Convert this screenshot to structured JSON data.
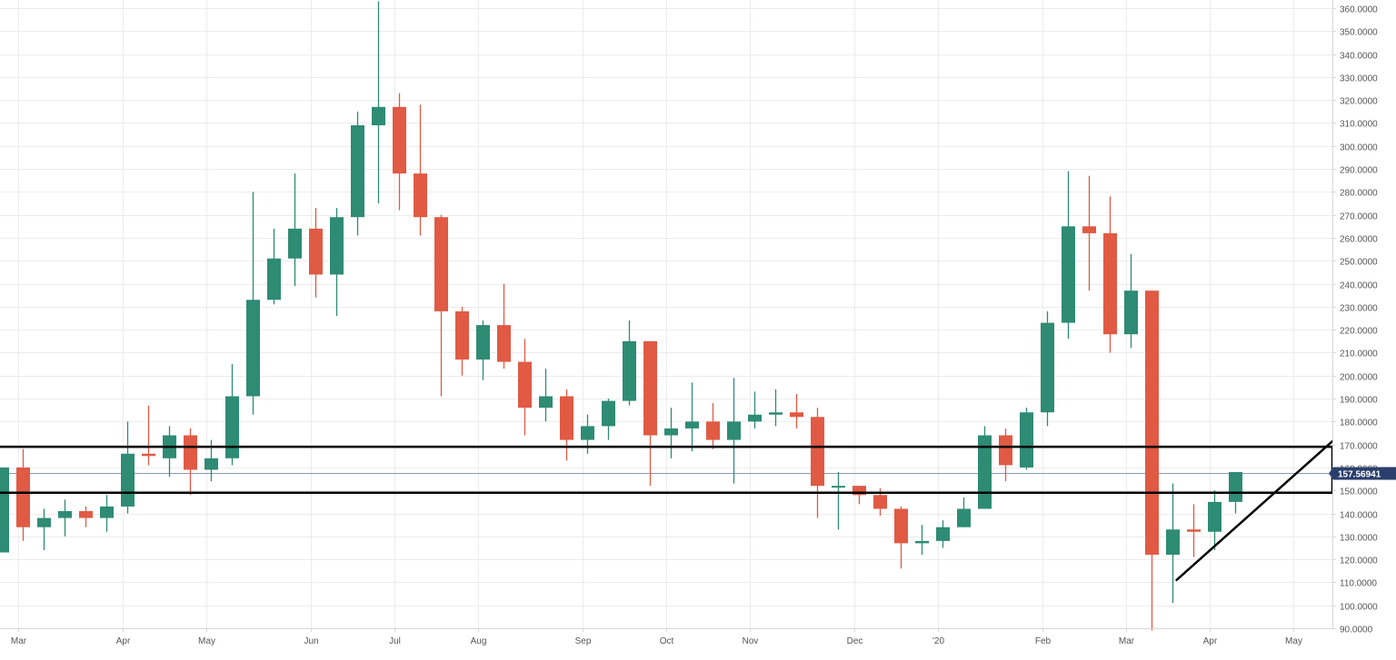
{
  "chart_data": {
    "type": "candlestick",
    "interval": "weekly",
    "colors": {
      "up": "#2e8b74",
      "down": "#e05a44",
      "grid": "#ececec",
      "axis": "#d6d6d6",
      "text": "#555555",
      "price_line": "#8a9bb5",
      "price_badge": "#2a3f6b",
      "annotations": "#000000"
    },
    "y_axis": {
      "min": 90,
      "max": 360,
      "step": 10,
      "position": "right",
      "ticks": [
        "360.0000",
        "350.0000",
        "340.0000",
        "330.0000",
        "320.0000",
        "310.0000",
        "300.0000",
        "290.0000",
        "280.0000",
        "270.0000",
        "260.0000",
        "250.0000",
        "240.0000",
        "230.0000",
        "220.0000",
        "210.0000",
        "200.0000",
        "190.0000",
        "180.0000",
        "170.0000",
        "160.0000",
        "150.0000",
        "140.0000",
        "130.0000",
        "120.0000",
        "110.0000",
        "100.0000",
        "90.0000"
      ]
    },
    "x_axis": {
      "labels": [
        {
          "label": "Mar",
          "at_candle": 0.8
        },
        {
          "label": "Apr",
          "at_candle": 5.8
        },
        {
          "label": "May",
          "at_candle": 9.8
        },
        {
          "label": "Jun",
          "at_candle": 14.8
        },
        {
          "label": "Jul",
          "at_candle": 18.8
        },
        {
          "label": "Aug",
          "at_candle": 22.8
        },
        {
          "label": "Sep",
          "at_candle": 27.8
        },
        {
          "label": "Oct",
          "at_candle": 31.8
        },
        {
          "label": "Nov",
          "at_candle": 35.8
        },
        {
          "label": "Dec",
          "at_candle": 40.8
        },
        {
          "label": "'20",
          "at_candle": 44.8
        },
        {
          "label": "Feb",
          "at_candle": 49.8
        },
        {
          "label": "Mar",
          "at_candle": 53.8
        },
        {
          "label": "Apr",
          "at_candle": 57.8
        },
        {
          "label": "May",
          "at_candle": 61.8
        }
      ]
    },
    "last_price": {
      "value": 157.56941,
      "label": "157.56941"
    },
    "candles": [
      {
        "o": 123,
        "h": 160,
        "l": 123,
        "c": 160
      },
      {
        "o": 160,
        "h": 168,
        "l": 128,
        "c": 134
      },
      {
        "o": 134,
        "h": 142,
        "l": 124,
        "c": 138
      },
      {
        "o": 138,
        "h": 146,
        "l": 130,
        "c": 141
      },
      {
        "o": 141,
        "h": 143,
        "l": 134,
        "c": 138
      },
      {
        "o": 138,
        "h": 148,
        "l": 132,
        "c": 143
      },
      {
        "o": 143,
        "h": 180,
        "l": 140,
        "c": 166
      },
      {
        "o": 166,
        "h": 187,
        "l": 161,
        "c": 165
      },
      {
        "o": 164,
        "h": 178,
        "l": 156,
        "c": 174
      },
      {
        "o": 174,
        "h": 177,
        "l": 148,
        "c": 159
      },
      {
        "o": 159,
        "h": 172,
        "l": 154,
        "c": 164
      },
      {
        "o": 164,
        "h": 205,
        "l": 161,
        "c": 191
      },
      {
        "o": 191,
        "h": 280,
        "l": 183,
        "c": 233
      },
      {
        "o": 233,
        "h": 264,
        "l": 231,
        "c": 251
      },
      {
        "o": 251,
        "h": 288,
        "l": 239,
        "c": 264
      },
      {
        "o": 264,
        "h": 273,
        "l": 234,
        "c": 244
      },
      {
        "o": 244,
        "h": 273,
        "l": 226,
        "c": 269
      },
      {
        "o": 269,
        "h": 315,
        "l": 261,
        "c": 309
      },
      {
        "o": 309,
        "h": 363,
        "l": 275,
        "c": 317
      },
      {
        "o": 317,
        "h": 323,
        "l": 272,
        "c": 288
      },
      {
        "o": 288,
        "h": 318,
        "l": 261,
        "c": 269
      },
      {
        "o": 269,
        "h": 270,
        "l": 191,
        "c": 228
      },
      {
        "o": 228,
        "h": 230,
        "l": 200,
        "c": 207
      },
      {
        "o": 207,
        "h": 224,
        "l": 198,
        "c": 222
      },
      {
        "o": 222,
        "h": 240,
        "l": 203,
        "c": 206
      },
      {
        "o": 206,
        "h": 216,
        "l": 174,
        "c": 186
      },
      {
        "o": 186,
        "h": 203,
        "l": 180,
        "c": 191
      },
      {
        "o": 191,
        "h": 194,
        "l": 163,
        "c": 172
      },
      {
        "o": 172,
        "h": 183,
        "l": 166,
        "c": 178
      },
      {
        "o": 178,
        "h": 190,
        "l": 172,
        "c": 189
      },
      {
        "o": 189,
        "h": 224,
        "l": 187,
        "c": 215
      },
      {
        "o": 215,
        "h": 215,
        "l": 152,
        "c": 174
      },
      {
        "o": 174,
        "h": 186,
        "l": 164,
        "c": 177
      },
      {
        "o": 177,
        "h": 197,
        "l": 167,
        "c": 180
      },
      {
        "o": 180,
        "h": 188,
        "l": 168,
        "c": 172
      },
      {
        "o": 172,
        "h": 199,
        "l": 153,
        "c": 180
      },
      {
        "o": 180,
        "h": 193,
        "l": 177,
        "c": 183
      },
      {
        "o": 183,
        "h": 194,
        "l": 178,
        "c": 184
      },
      {
        "o": 184,
        "h": 192,
        "l": 177,
        "c": 182
      },
      {
        "o": 182,
        "h": 186,
        "l": 138,
        "c": 152
      },
      {
        "o": 152,
        "h": 158,
        "l": 133,
        "c": 152
      },
      {
        "o": 152,
        "h": 152,
        "l": 144,
        "c": 148
      },
      {
        "o": 148,
        "h": 151,
        "l": 139,
        "c": 142
      },
      {
        "o": 142,
        "h": 143,
        "l": 116,
        "c": 127
      },
      {
        "o": 127,
        "h": 135,
        "l": 122,
        "c": 128
      },
      {
        "o": 128,
        "h": 137,
        "l": 125,
        "c": 134
      },
      {
        "o": 134,
        "h": 147,
        "l": 134,
        "c": 142
      },
      {
        "o": 142,
        "h": 178,
        "l": 142,
        "c": 174
      },
      {
        "o": 174,
        "h": 177,
        "l": 154,
        "c": 161
      },
      {
        "o": 160,
        "h": 186,
        "l": 159,
        "c": 184
      },
      {
        "o": 184,
        "h": 228,
        "l": 178,
        "c": 223
      },
      {
        "o": 223,
        "h": 289,
        "l": 216,
        "c": 265
      },
      {
        "o": 265,
        "h": 287,
        "l": 237,
        "c": 262
      },
      {
        "o": 262,
        "h": 278,
        "l": 210,
        "c": 218
      },
      {
        "o": 218,
        "h": 253,
        "l": 212,
        "c": 237
      },
      {
        "o": 237,
        "h": 237,
        "l": 89,
        "c": 122
      },
      {
        "o": 122,
        "h": 153,
        "l": 101,
        "c": 133
      },
      {
        "o": 133,
        "h": 144,
        "l": 121,
        "c": 132
      },
      {
        "o": 132,
        "h": 150,
        "l": 124,
        "c": 145
      },
      {
        "o": 145,
        "h": 158,
        "l": 140,
        "c": 158
      }
    ],
    "zones": [
      {
        "from": 149,
        "to": 169
      }
    ],
    "trendline": {
      "from": {
        "candle": 56.2,
        "price": 111
      },
      "to": {
        "candle": 65.7,
        "price": 188
      }
    }
  }
}
